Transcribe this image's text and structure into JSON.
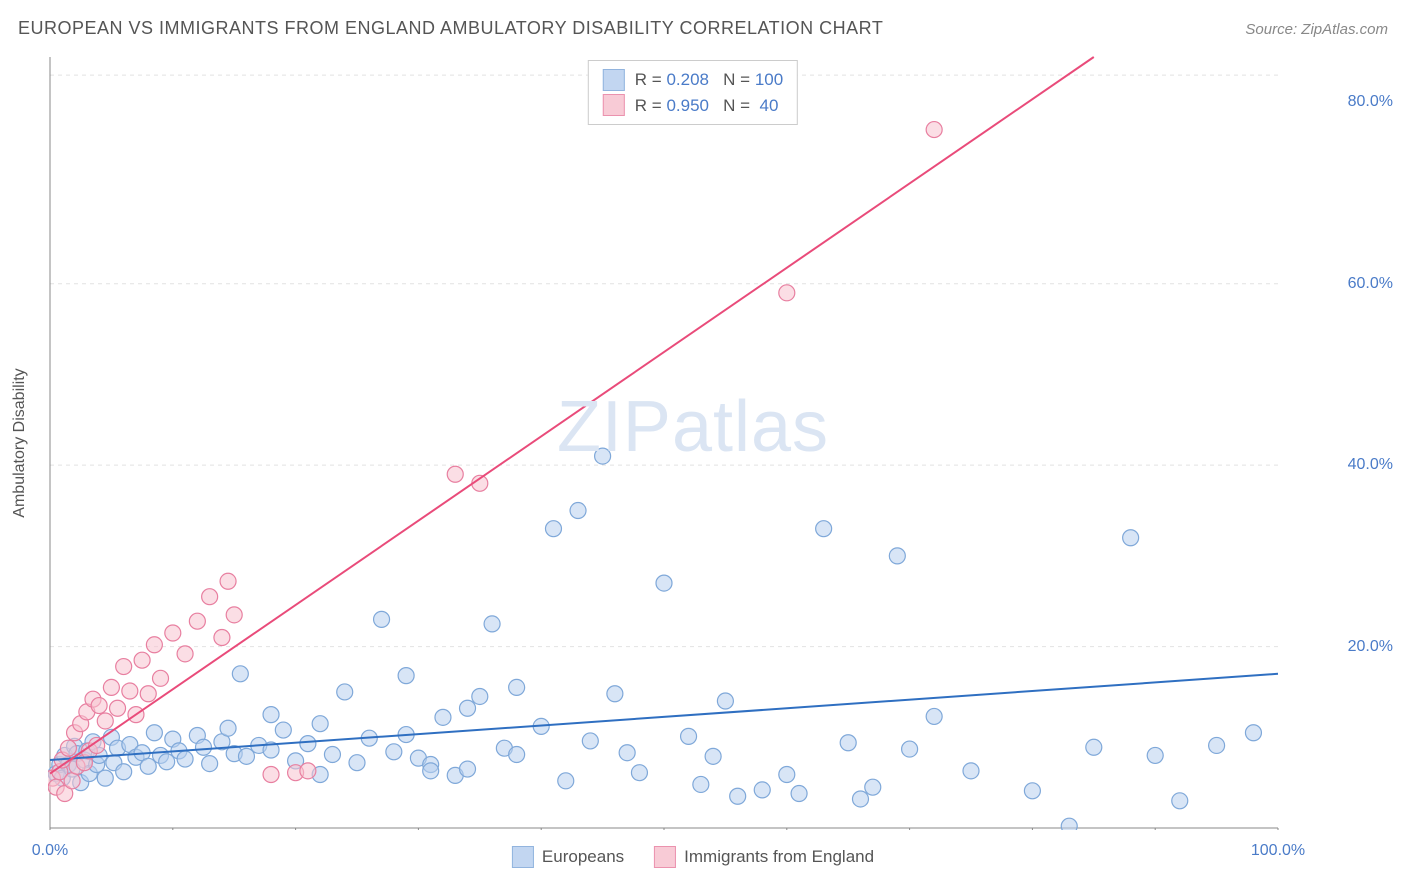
{
  "title": "EUROPEAN VS IMMIGRANTS FROM ENGLAND AMBULATORY DISABILITY CORRELATION CHART",
  "source_label": "Source:",
  "source_value": "ZipAtlas.com",
  "watermark": {
    "part1": "ZIP",
    "part2": "atlas"
  },
  "y_axis_label": "Ambulatory Disability",
  "chart": {
    "type": "scatter",
    "background_color": "#ffffff",
    "grid_color": "#e2e2e2",
    "axis_color": "#888888",
    "tick_color": "#888888",
    "label_color": "#4a7bc8",
    "xlim": [
      0,
      100
    ],
    "ylim": [
      0,
      85
    ],
    "x_ticks_minor_step": 10,
    "y_gridlines": [
      20,
      40,
      60,
      83
    ],
    "x_tick_labels": [
      {
        "value": 0,
        "label": "0.0%"
      },
      {
        "value": 100,
        "label": "100.0%"
      }
    ],
    "y_tick_labels": [
      {
        "value": 20,
        "label": "20.0%"
      },
      {
        "value": 40,
        "label": "40.0%"
      },
      {
        "value": 60,
        "label": "60.0%"
      },
      {
        "value": 80,
        "label": "80.0%"
      }
    ],
    "series": [
      {
        "id": "europeans",
        "name": "Europeans",
        "marker_fill": "#b8d0ef",
        "marker_stroke": "#7fa8d9",
        "marker_fill_opacity": 0.55,
        "marker_radius": 8,
        "line_color": "#2f6fc1",
        "line_width": 2,
        "r": "0.208",
        "n": "100",
        "trend": {
          "x1": 0,
          "y1": 7.5,
          "x2": 100,
          "y2": 17.0
        },
        "points": [
          [
            0.5,
            6
          ],
          [
            0.8,
            7
          ],
          [
            1,
            5.5
          ],
          [
            1.2,
            8
          ],
          [
            1.5,
            7
          ],
          [
            1.8,
            6.5
          ],
          [
            2,
            9
          ],
          [
            2.2,
            8.2
          ],
          [
            2.5,
            5
          ],
          [
            2.8,
            7.5
          ],
          [
            3,
            8.5
          ],
          [
            3.2,
            6
          ],
          [
            3.5,
            9.5
          ],
          [
            3.8,
            7
          ],
          [
            4,
            8
          ],
          [
            4.5,
            5.5
          ],
          [
            5,
            10
          ],
          [
            5.2,
            7.2
          ],
          [
            5.5,
            8.8
          ],
          [
            6,
            6.2
          ],
          [
            6.5,
            9.2
          ],
          [
            7,
            7.8
          ],
          [
            7.5,
            8.3
          ],
          [
            8,
            6.8
          ],
          [
            8.5,
            10.5
          ],
          [
            9,
            8
          ],
          [
            9.5,
            7.3
          ],
          [
            10,
            9.8
          ],
          [
            10.5,
            8.5
          ],
          [
            11,
            7.6
          ],
          [
            12,
            10.2
          ],
          [
            12.5,
            8.9
          ],
          [
            13,
            7.1
          ],
          [
            14,
            9.5
          ],
          [
            14.5,
            11
          ],
          [
            15,
            8.2
          ],
          [
            15.5,
            17
          ],
          [
            16,
            7.9
          ],
          [
            17,
            9.1
          ],
          [
            18,
            8.6
          ],
          [
            19,
            10.8
          ],
          [
            20,
            7.4
          ],
          [
            21,
            9.3
          ],
          [
            22,
            11.5
          ],
          [
            23,
            8.1
          ],
          [
            24,
            15
          ],
          [
            25,
            7.2
          ],
          [
            26,
            9.9
          ],
          [
            27,
            23
          ],
          [
            28,
            8.4
          ],
          [
            29,
            10.3
          ],
          [
            30,
            7.7
          ],
          [
            31,
            7
          ],
          [
            32,
            12.2
          ],
          [
            33,
            5.8
          ],
          [
            34,
            6.5
          ],
          [
            35,
            14.5
          ],
          [
            36,
            22.5
          ],
          [
            37,
            8.8
          ],
          [
            38,
            15.5
          ],
          [
            40,
            11.2
          ],
          [
            41,
            33
          ],
          [
            42,
            5.2
          ],
          [
            43,
            35
          ],
          [
            44,
            9.6
          ],
          [
            45,
            41
          ],
          [
            46,
            14.8
          ],
          [
            47,
            8.3
          ],
          [
            48,
            6.1
          ],
          [
            50,
            27
          ],
          [
            52,
            10.1
          ],
          [
            53,
            4.8
          ],
          [
            54,
            7.9
          ],
          [
            55,
            14
          ],
          [
            56,
            3.5
          ],
          [
            58,
            4.2
          ],
          [
            60,
            5.9
          ],
          [
            61,
            3.8
          ],
          [
            63,
            33
          ],
          [
            65,
            9.4
          ],
          [
            66,
            3.2
          ],
          [
            67,
            4.5
          ],
          [
            69,
            30
          ],
          [
            70,
            8.7
          ],
          [
            72,
            12.3
          ],
          [
            75,
            6.3
          ],
          [
            80,
            4.1
          ],
          [
            83,
            0.2
          ],
          [
            85,
            8.9
          ],
          [
            88,
            32
          ],
          [
            90,
            8.0
          ],
          [
            92,
            3.0
          ],
          [
            95,
            9.1
          ],
          [
            98,
            10.5
          ],
          [
            34,
            13.2
          ],
          [
            29,
            16.8
          ],
          [
            31,
            6.3
          ],
          [
            38,
            8.1
          ],
          [
            22,
            5.9
          ],
          [
            18,
            12.5
          ]
        ]
      },
      {
        "id": "england",
        "name": "Immigrants from England",
        "marker_fill": "#f7c3d0",
        "marker_stroke": "#e87fa0",
        "marker_fill_opacity": 0.55,
        "marker_radius": 8,
        "line_color": "#e94b7a",
        "line_width": 2,
        "r": "0.950",
        "n": "40",
        "trend": {
          "x1": 0,
          "y1": 6,
          "x2": 85,
          "y2": 85
        },
        "points": [
          [
            0.2,
            5.5
          ],
          [
            0.5,
            4.5
          ],
          [
            0.8,
            6.2
          ],
          [
            1,
            7.5
          ],
          [
            1.2,
            3.8
          ],
          [
            1.5,
            8.8
          ],
          [
            1.8,
            5.2
          ],
          [
            2,
            10.5
          ],
          [
            2.2,
            6.8
          ],
          [
            2.5,
            11.5
          ],
          [
            2.8,
            7.2
          ],
          [
            3,
            12.8
          ],
          [
            3.2,
            8.5
          ],
          [
            3.5,
            14.2
          ],
          [
            3.8,
            9.1
          ],
          [
            4,
            13.5
          ],
          [
            4.5,
            11.8
          ],
          [
            5,
            15.5
          ],
          [
            5.5,
            13.2
          ],
          [
            6,
            17.8
          ],
          [
            6.5,
            15.1
          ],
          [
            7,
            12.5
          ],
          [
            7.5,
            18.5
          ],
          [
            8,
            14.8
          ],
          [
            8.5,
            20.2
          ],
          [
            9,
            16.5
          ],
          [
            10,
            21.5
          ],
          [
            11,
            19.2
          ],
          [
            12,
            22.8
          ],
          [
            13,
            25.5
          ],
          [
            14,
            21.0
          ],
          [
            14.5,
            27.2
          ],
          [
            15,
            23.5
          ],
          [
            18,
            5.9
          ],
          [
            20,
            6.1
          ],
          [
            21,
            6.3
          ],
          [
            33,
            39
          ],
          [
            35,
            38
          ],
          [
            60,
            59
          ],
          [
            72,
            77
          ]
        ]
      }
    ]
  },
  "legend_top_rows": [
    {
      "series": 0,
      "r_label": "R =",
      "n_label": "N ="
    },
    {
      "series": 1,
      "r_label": "R =",
      "n_label": "N ="
    }
  ],
  "legend_bottom": [
    {
      "series": 0
    },
    {
      "series": 1
    }
  ]
}
